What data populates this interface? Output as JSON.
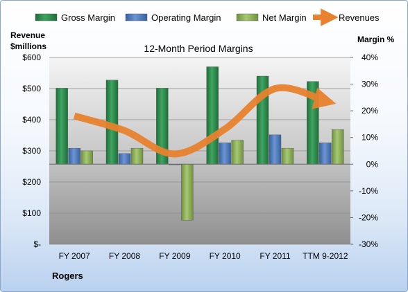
{
  "chart_data": {
    "type": "bar",
    "title": "12-Month Period Margins",
    "company": "Rogers",
    "categories": [
      "FY 2007",
      "FY 2008",
      "FY 2009",
      "FY 2010",
      "FY 2011",
      "TTM 9-2012"
    ],
    "left_axis": {
      "label_line1": "Revenue",
      "label_line2": "$millions",
      "ylim": [
        0,
        600
      ],
      "ticks": [
        0,
        100,
        200,
        300,
        400,
        500,
        600
      ],
      "tick_labels": [
        "$-",
        "$100",
        "$200",
        "$300",
        "$400",
        "$500",
        "$600"
      ]
    },
    "right_axis": {
      "label": "Margin %",
      "ylim": [
        -30,
        40
      ],
      "ticks": [
        -30,
        -20,
        -10,
        0,
        10,
        20,
        30,
        40
      ],
      "tick_labels": [
        "-30%",
        "-20%",
        "-10%",
        "0%",
        "10%",
        "20%",
        "30%",
        "40%"
      ]
    },
    "series": [
      {
        "name": "Gross Margin",
        "axis": "right",
        "kind": "bar",
        "color": "#2e8b4e",
        "values": [
          28.5,
          31.5,
          28.5,
          36.5,
          33.0,
          31.0
        ]
      },
      {
        "name": "Operating Margin",
        "axis": "right",
        "kind": "bar",
        "color": "#4f7cc0",
        "values": [
          6.0,
          4.0,
          0.0,
          8.0,
          11.0,
          8.0
        ]
      },
      {
        "name": "Net Margin",
        "axis": "right",
        "kind": "bar",
        "color": "#8fb35a",
        "values": [
          5.0,
          6.0,
          -21.0,
          9.0,
          6.0,
          13.0
        ]
      },
      {
        "name": "Revenues",
        "axis": "left",
        "kind": "line",
        "color": "#e8822f",
        "values": [
          412,
          365,
          290,
          370,
          500,
          460
        ]
      }
    ],
    "grid": true,
    "legend_position": "top"
  }
}
